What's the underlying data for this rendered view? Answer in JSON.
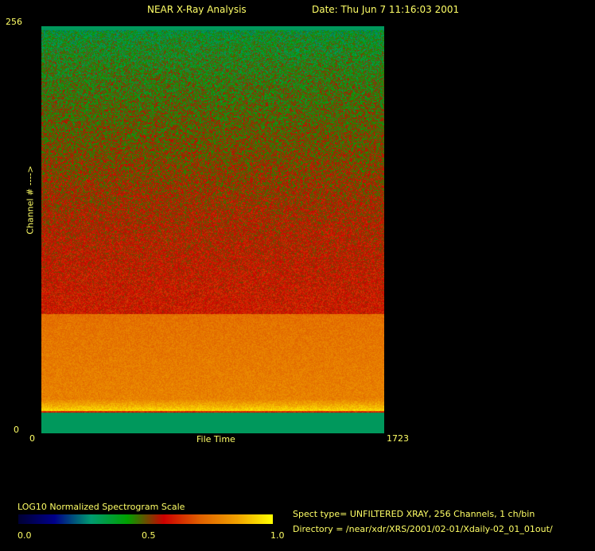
{
  "header": {
    "title": "NEAR X-Ray Analysis",
    "date": "Date: Thu Jun  7 11:16:03 2001"
  },
  "chart_data": {
    "type": "heatmap",
    "title": "NEAR X-Ray Analysis",
    "xlabel": "File Time",
    "ylabel": "Channel # ---->",
    "xlim": [
      0,
      1723
    ],
    "ylim": [
      0,
      256
    ],
    "x_tick_labels": [
      "0",
      "1723"
    ],
    "y_tick_labels": [
      "0",
      "256"
    ],
    "colorbar": {
      "title": "LOG10 Normalized Spectrogram Scale",
      "range": [
        0.0,
        1.0
      ],
      "tick_labels": [
        "0.0",
        "0.5",
        "1.0"
      ],
      "colors": [
        "#000033",
        "#00008a",
        "#009a70",
        "#00a000",
        "#cc0000",
        "#e06000",
        "#f0a000",
        "#ffff00"
      ]
    }
  },
  "info": {
    "spect_type": "Spect type= UNFILTERED XRAY,  256 Channels,  1 ch/bin",
    "directory": "Directory = /near/xdr/XRS/2001/02-01/Xdaily-02_01_01out/"
  }
}
